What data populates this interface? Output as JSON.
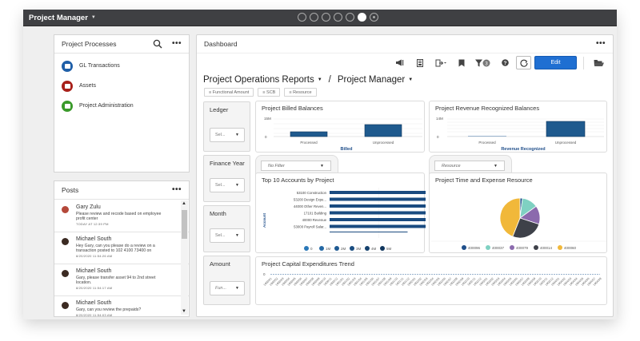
{
  "app": {
    "title": "Project Manager",
    "page_dots": [
      {
        "state": "inactive"
      },
      {
        "state": "inactive"
      },
      {
        "state": "inactive"
      },
      {
        "state": "inactive"
      },
      {
        "state": "inactive"
      },
      {
        "state": "active"
      },
      {
        "state": "target"
      }
    ]
  },
  "processes": {
    "title": "Project Processes",
    "items": [
      {
        "label": "GL Transactions",
        "color": "#1f5fa8",
        "icon": "calculator-icon"
      },
      {
        "label": "Assets",
        "color": "#a8201a",
        "icon": "folder-icon"
      },
      {
        "label": "Project Administration",
        "color": "#3a9a2a",
        "icon": "folder-icon"
      }
    ]
  },
  "posts": {
    "title": "Posts",
    "items": [
      {
        "name": "Gary Zulu",
        "text": "Please review and recode based on employee profit center",
        "time": "TODAY AT 12:39 PM",
        "avatar_color": "#b4483a"
      },
      {
        "name": "Michael South",
        "text": "Hey Gary, can you please do a review on a transaction posted to 102 4100 73400 on",
        "time": "8/20/2020 11:54:26 AM",
        "avatar_color": "#3b2a22"
      },
      {
        "name": "Michael South",
        "text": "Gary, please transfer asset 94 to 2nd street location.",
        "time": "8/20/2020 11:54:17 AM",
        "avatar_color": "#3b2a22"
      },
      {
        "name": "Michael South",
        "text": "Gary, can you review the prepaids?",
        "time": "8/20/2020 11:54:03 AM",
        "avatar_color": "#3b2a22"
      }
    ]
  },
  "dashboard": {
    "title": "Dashboard",
    "toolbar": {
      "edit_label": "Edit",
      "filter_count": "3",
      "icons": [
        "announce-icon",
        "report-icon",
        "export-icon",
        "bookmark-icon",
        "filter-icon",
        "help-icon",
        "refresh-icon",
        "open-folder-icon"
      ]
    },
    "report": {
      "name": "Project Operations Reports",
      "separator": "/",
      "context": "Project Manager"
    },
    "chips": [
      "≡ Functional Amount",
      "≡ SCB",
      "≡ Resource"
    ],
    "filters": [
      {
        "label": "Ledger",
        "value": "Sel..."
      },
      {
        "label": "Finance Year",
        "value": "Sel..."
      },
      {
        "label": "Month",
        "value": "Sel..."
      },
      {
        "label": "Amount",
        "value": "Fun..."
      }
    ],
    "pill_filters": [
      {
        "value": "No Filter"
      },
      {
        "value": "Resource"
      }
    ]
  },
  "chart_data": [
    {
      "type": "bar",
      "title": "Project Billed Balances",
      "categories": [
        "Processed",
        "Unprocessed"
      ],
      "values": [
        5,
        10
      ],
      "xlabel": "Billed",
      "ylabel": "",
      "yticks": [
        "0",
        "15M"
      ],
      "ylim": [
        0,
        15
      ],
      "unit": "M"
    },
    {
      "type": "bar",
      "title": "Project Revenue Recognized Balances",
      "categories": [
        "Processed",
        "Unprocessed"
      ],
      "values": [
        0.3,
        14
      ],
      "xlabel": "Revenue Recognized",
      "ylabel": "",
      "yticks": [
        "0",
        "14M"
      ],
      "ylim": [
        0,
        14
      ],
      "unit": "M"
    },
    {
      "type": "bar",
      "orientation": "horizontal",
      "title": "Top 10 Accounts by Project",
      "categories": [
        "53100 Construction",
        "53200 Design Expe...",
        "44000 Other Reven...",
        "17101 Building",
        "40000 Revenue",
        "53000 Payroll Salar...",
        "..."
      ],
      "values": [
        4.67,
        2.91,
        2.65,
        2.49,
        2.37,
        1.89,
        1.5
      ],
      "value_labels": [
        "4.67M",
        "2.91M",
        "2.65M",
        "2.49M",
        "2.37M",
        "1.89M",
        "1.5M"
      ],
      "ylabel": "Account",
      "xlim": [
        0,
        5
      ],
      "legend": [
        "0",
        "1M",
        "2M",
        "3M",
        "4M",
        "5M"
      ]
    },
    {
      "type": "pie",
      "title": "Project Time and Expense Resource",
      "series": [
        {
          "name": "400096",
          "value": 2,
          "color": "#1f4e8a"
        },
        {
          "name": "400037",
          "value": 13,
          "color": "#7fd1c2"
        },
        {
          "name": "400079",
          "value": 15,
          "color": "#8b6aad"
        },
        {
          "name": "400014",
          "value": 26,
          "color": "#3e4149"
        },
        {
          "name": "400060",
          "value": 44,
          "color": "#f1b83a"
        }
      ],
      "legend_position": "bottom"
    },
    {
      "type": "line",
      "title": "Project Capital Expenditures Trend",
      "x": [
        "1900/01",
        "1900/02",
        "1900/03",
        "1900/04",
        "1900/05",
        "1900/06",
        "1900/07",
        "1900/08",
        "1900/09",
        "1900/10",
        "1900/11",
        "1900/12",
        "1901/01",
        "1901/02",
        "1901/03",
        "1901/04",
        "1901/05",
        "1901/06",
        "1901/07",
        "1901/08",
        "1901/09",
        "1901/10",
        "1901/11",
        "1901/12",
        "1902/01",
        "1902/02",
        "1902/03",
        "1902/04",
        "1902/05",
        "1902/06",
        "1902/07",
        "1902/08",
        "1902/09",
        "1902/10",
        "1902/11",
        "1902/12",
        "1903/01",
        "1903/02",
        "1903/03",
        "1903/04",
        "1903/05",
        "1903/06",
        "1903/07",
        "1903/08",
        "1903/09",
        "1903/10",
        "1903/11",
        "1903/12",
        "1904/01",
        "1904/02",
        "1904/03",
        "1904/04",
        "1904/05",
        "1904/06",
        "1904/07",
        "1904/08"
      ],
      "values": [
        0,
        0,
        0,
        0,
        0,
        0,
        0,
        0,
        0,
        0,
        0,
        0,
        0,
        0,
        0,
        0,
        0,
        0,
        0,
        0,
        0,
        0,
        0,
        0,
        0,
        0,
        0,
        0,
        0,
        0,
        0,
        0,
        0,
        0,
        0,
        0,
        0,
        0,
        0,
        0,
        0,
        0,
        0,
        0,
        0,
        0,
        0,
        0,
        0,
        0,
        0,
        0,
        0,
        0,
        0,
        0
      ],
      "yticks": [
        "0"
      ]
    }
  ]
}
